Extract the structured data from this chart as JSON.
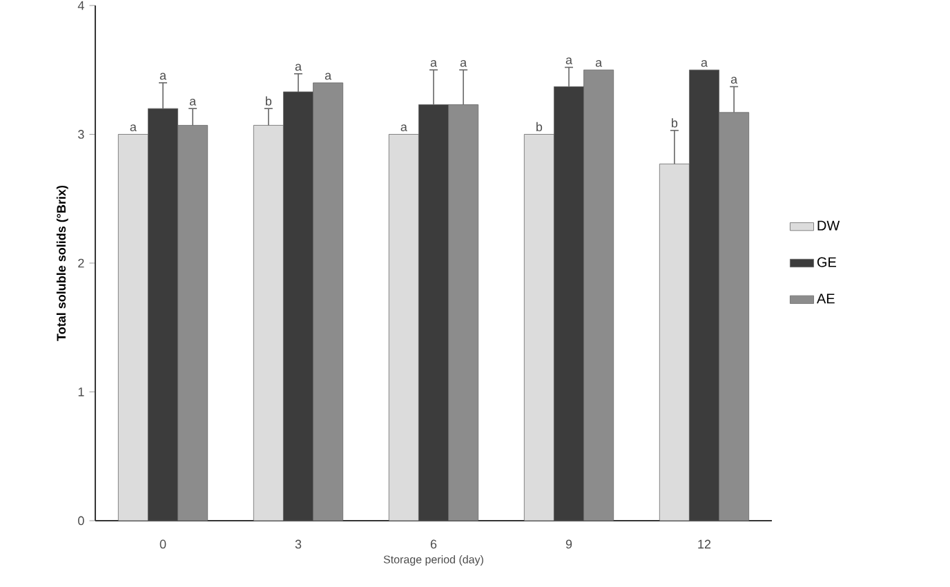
{
  "chart_data": {
    "type": "bar",
    "xlabel": "Storage period (day)",
    "ylabel": "Total soluble solids (°Brix)",
    "categories": [
      "0",
      "3",
      "6",
      "9",
      "12"
    ],
    "series": [
      {
        "name": "DW",
        "color": "#dcdcdc",
        "values": [
          3.0,
          3.07,
          3.0,
          3.0,
          2.77
        ],
        "errors": [
          null,
          0.13,
          null,
          null,
          0.26
        ],
        "value_labels": [
          "a",
          "b",
          "a",
          "b",
          "b"
        ]
      },
      {
        "name": "GE",
        "color": "#3c3c3c",
        "values": [
          3.2,
          3.33,
          3.23,
          3.37,
          3.5
        ],
        "errors": [
          0.2,
          0.14,
          0.27,
          0.15,
          null
        ],
        "value_labels": [
          "a",
          "a",
          "a",
          "a",
          "a"
        ]
      },
      {
        "name": "AE",
        "color": "#8c8c8c",
        "values": [
          3.07,
          3.4,
          3.23,
          3.5,
          3.17
        ],
        "errors": [
          0.13,
          null,
          0.27,
          null,
          0.2
        ],
        "value_labels": [
          "a",
          "a",
          "a",
          "a",
          "a"
        ]
      }
    ],
    "ylim": [
      0,
      4
    ],
    "yticks": [
      0,
      1,
      2,
      3,
      4
    ],
    "grid": false,
    "legend": "right"
  }
}
